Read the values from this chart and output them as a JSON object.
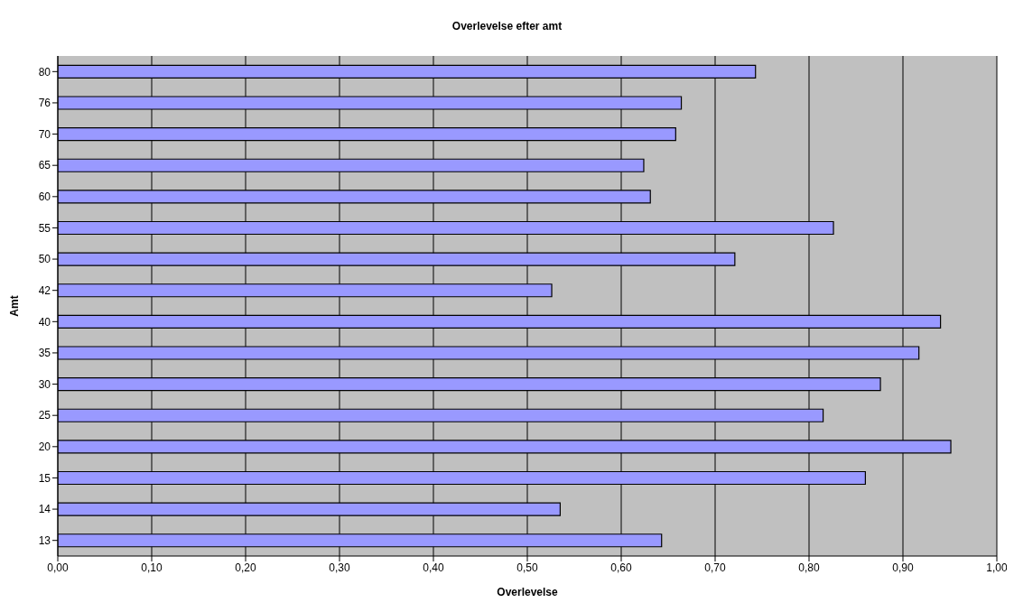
{
  "chart_data": {
    "type": "bar",
    "orientation": "horizontal",
    "title": "Overlevelse efter amt",
    "xlabel": "Overlevelse",
    "ylabel": "Amt",
    "categories": [
      "80",
      "76",
      "70",
      "65",
      "60",
      "55",
      "50",
      "42",
      "40",
      "35",
      "30",
      "25",
      "20",
      "15",
      "14",
      "13"
    ],
    "values": [
      0.743,
      0.664,
      0.658,
      0.624,
      0.631,
      0.826,
      0.721,
      0.526,
      0.94,
      0.917,
      0.876,
      0.815,
      0.951,
      0.86,
      0.535,
      0.643
    ],
    "color": "#9999ff",
    "xlim": [
      0,
      1
    ],
    "xticks": [
      {
        "value": 0,
        "label": "0,00"
      },
      {
        "value": 0.1,
        "label": "0,10"
      },
      {
        "value": 0.2,
        "label": "0,20"
      },
      {
        "value": 0.3,
        "label": "0,30"
      },
      {
        "value": 0.4,
        "label": "0,40"
      },
      {
        "value": 0.5,
        "label": "0,50"
      },
      {
        "value": 0.6,
        "label": "0,60"
      },
      {
        "value": 0.7,
        "label": "0,70"
      },
      {
        "value": 0.8,
        "label": "0,80"
      },
      {
        "value": 0.9,
        "label": "0,90"
      },
      {
        "value": 1,
        "label": "1,00"
      }
    ],
    "grid": "x",
    "legend": false
  }
}
